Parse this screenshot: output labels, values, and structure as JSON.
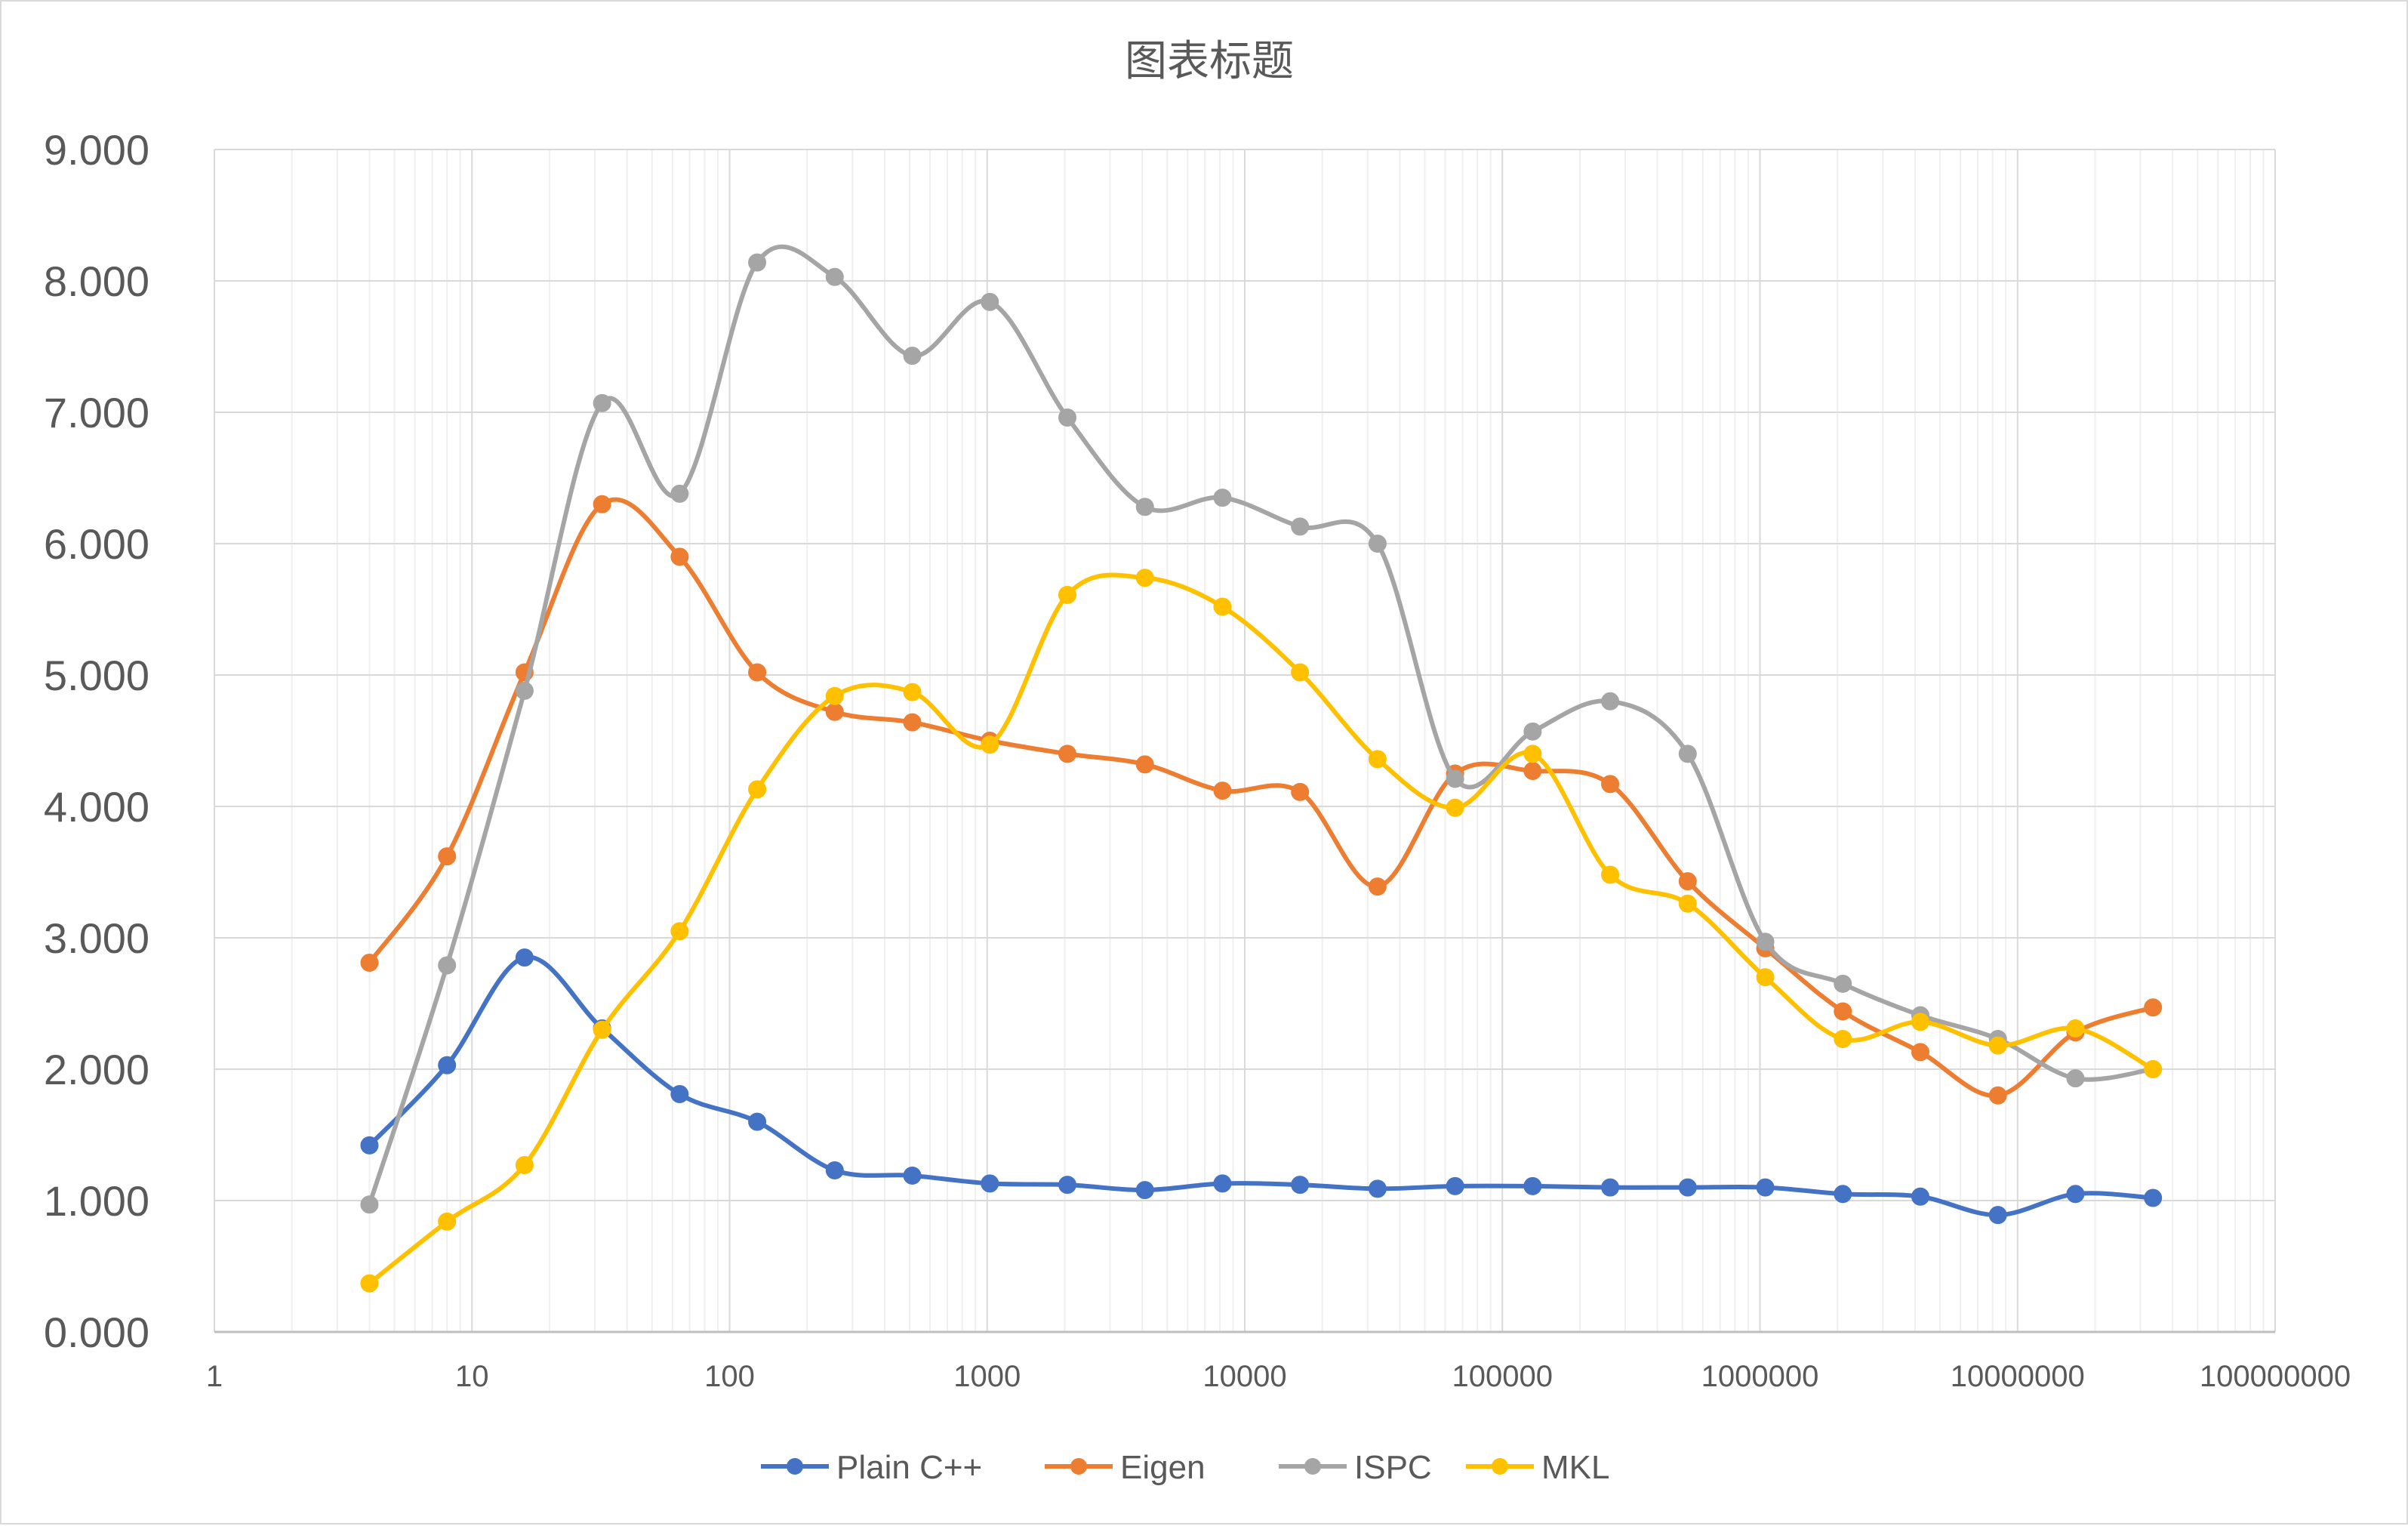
{
  "chart_data": {
    "type": "line",
    "title": "图表标题",
    "x_scale": "log",
    "xlim": [
      1,
      100000000
    ],
    "ylim": [
      0,
      9
    ],
    "x_ticks": [
      "1",
      "10",
      "100",
      "1000",
      "10000",
      "100000",
      "1000000",
      "10000000",
      "100000000"
    ],
    "y_ticks": [
      "0.000",
      "1.000",
      "2.000",
      "3.000",
      "4.000",
      "5.000",
      "6.000",
      "7.000",
      "8.000",
      "9.000"
    ],
    "grid": true,
    "legend_position": "bottom",
    "x": [
      4,
      8,
      16,
      32,
      64,
      128,
      256,
      512,
      1024,
      2048,
      4096,
      8192,
      16384,
      32768,
      65536,
      131072,
      262144,
      524288,
      1048576,
      2097152,
      4194304,
      8388608,
      16777216,
      33554432
    ],
    "series": [
      {
        "name": "Plain C++",
        "color": "#4472C4",
        "values": [
          1.42,
          2.03,
          2.85,
          2.31,
          1.81,
          1.6,
          1.23,
          1.19,
          1.13,
          1.12,
          1.08,
          1.13,
          1.12,
          1.09,
          1.11,
          1.11,
          1.1,
          1.1,
          1.1,
          1.05,
          1.03,
          0.89,
          1.05,
          1.02
        ]
      },
      {
        "name": "Eigen",
        "color": "#ED7D31",
        "values": [
          2.81,
          3.62,
          5.02,
          6.3,
          5.9,
          5.02,
          4.72,
          4.64,
          4.5,
          4.4,
          4.32,
          4.12,
          4.11,
          3.39,
          4.25,
          4.27,
          4.17,
          3.43,
          2.92,
          2.44,
          2.13,
          1.8,
          2.28,
          2.47
        ]
      },
      {
        "name": "ISPC",
        "color": "#A5A5A5",
        "values": [
          0.97,
          2.79,
          4.88,
          7.07,
          6.38,
          8.14,
          8.03,
          7.43,
          7.84,
          6.96,
          6.28,
          6.35,
          6.13,
          6.0,
          4.21,
          4.57,
          4.8,
          4.4,
          2.97,
          2.65,
          2.41,
          2.23,
          1.93,
          2.0
        ]
      },
      {
        "name": "MKL",
        "color": "#FFC000",
        "values": [
          0.37,
          0.84,
          1.27,
          2.3,
          3.05,
          4.13,
          4.84,
          4.87,
          4.47,
          5.61,
          5.74,
          5.52,
          5.02,
          4.36,
          3.99,
          4.4,
          3.48,
          3.26,
          2.7,
          2.23,
          2.36,
          2.18,
          2.31,
          2.0
        ]
      }
    ]
  }
}
